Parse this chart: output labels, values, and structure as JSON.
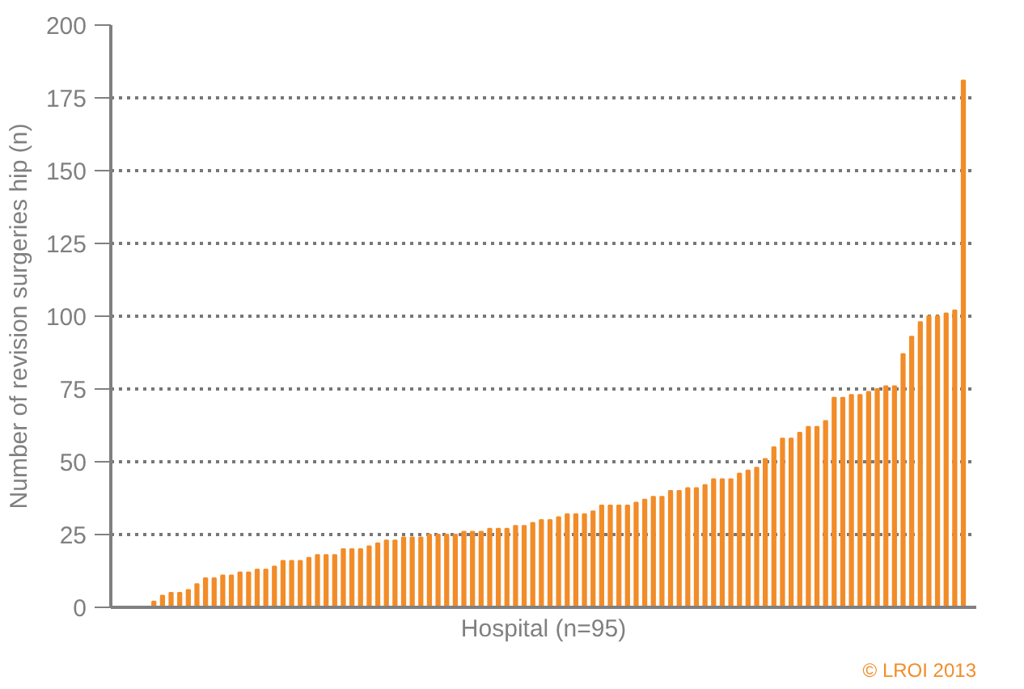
{
  "chart_data": {
    "type": "bar",
    "xlabel": "Hospital (n=95)",
    "ylabel": "Number of revision surgeries hip (n)",
    "categories": [
      null,
      null,
      null,
      null,
      null,
      null,
      null,
      null,
      null,
      null,
      null,
      null,
      null,
      null,
      null,
      null,
      null,
      null,
      null,
      null,
      null,
      null,
      null,
      null,
      null,
      null,
      null,
      null,
      null,
      null,
      null,
      null,
      null,
      null,
      null,
      null,
      null,
      null,
      null,
      null,
      null,
      null,
      null,
      null,
      null,
      null,
      null,
      null,
      null,
      null,
      null,
      null,
      null,
      null,
      null,
      null,
      null,
      null,
      null,
      null,
      null,
      null,
      null,
      null,
      null,
      null,
      null,
      null,
      null,
      null,
      null,
      null,
      null,
      null,
      null,
      null,
      null,
      null,
      null,
      null,
      null,
      null,
      null,
      null,
      null,
      null,
      null,
      null,
      null,
      null,
      null,
      null,
      null,
      null,
      null
    ],
    "values": [
      2,
      4,
      5,
      5,
      6,
      8,
      10,
      10,
      11,
      11,
      12,
      12,
      13,
      13,
      14,
      16,
      16,
      16,
      17,
      18,
      18,
      18,
      20,
      20,
      20,
      21,
      22,
      23,
      23,
      24,
      24,
      24,
      25,
      25,
      25,
      25,
      26,
      26,
      26,
      27,
      27,
      27,
      28,
      28,
      29,
      30,
      30,
      31,
      32,
      32,
      32,
      33,
      35,
      35,
      35,
      35,
      36,
      37,
      38,
      38,
      40,
      40,
      41,
      41,
      42,
      44,
      44,
      44,
      46,
      47,
      48,
      51,
      55,
      58,
      58,
      60,
      62,
      62,
      64,
      72,
      72,
      73,
      73,
      74,
      75,
      76,
      76,
      87,
      93,
      98,
      100,
      100,
      101,
      102,
      181
    ],
    "color": "#f28c28",
    "ylim": [
      0,
      200
    ],
    "yticks": [
      0,
      25,
      50,
      75,
      100,
      125,
      150,
      175,
      200
    ],
    "grid": "y",
    "tick_labels": "y",
    "annotations": [
      "© LROI 2013"
    ]
  }
}
